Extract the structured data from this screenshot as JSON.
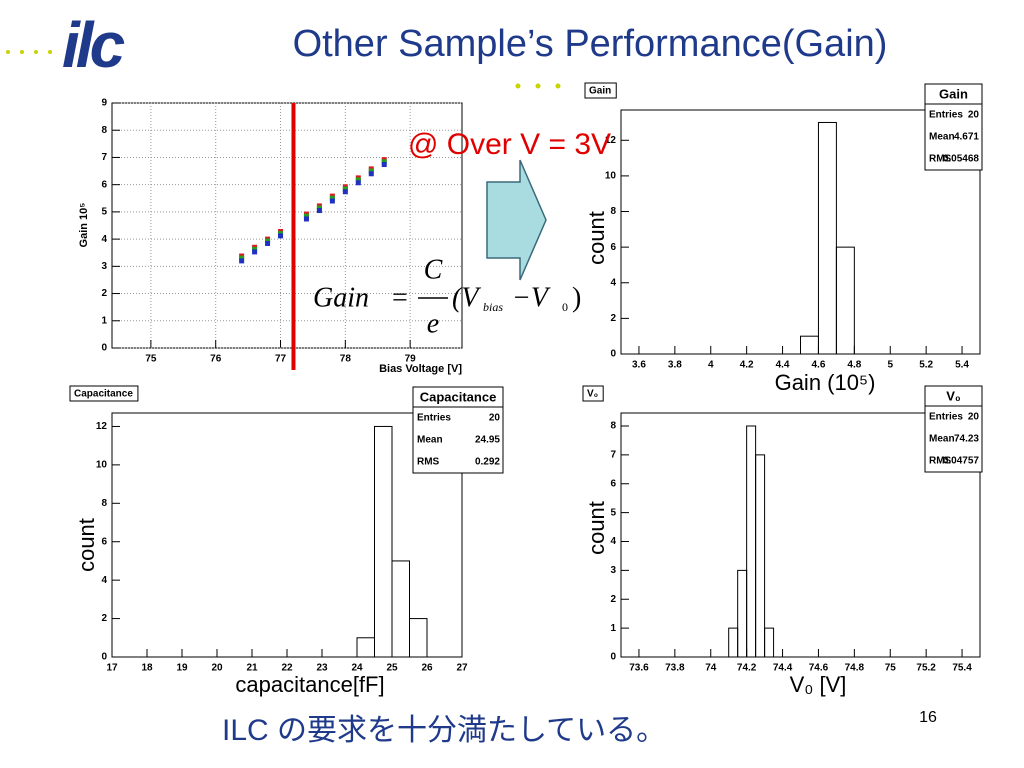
{
  "title": "Other Sample’s Performance(Gain)",
  "annotation": "@ Over V = 3V",
  "formula": {
    "lhs": "Gain",
    "eq": "=",
    "numerator": "C",
    "denominator": "e",
    "open": "(V",
    "sub1": "bias",
    "minus": "−V",
    "sub2": "0",
    "close": ")"
  },
  "logo": "ilc",
  "footer": "ILC の要求を十分満たしている。",
  "page_number": "16",
  "chart_data": [
    {
      "type": "scatter",
      "x_label": "Bias Voltage [V]",
      "y_label": "Gain 10⁵",
      "x": [
        76.4,
        76.6,
        76.8,
        77.0,
        77.4,
        77.6,
        77.8,
        78.0,
        78.2,
        78.4,
        78.6
      ],
      "series": [
        {
          "color": "#d62020",
          "values": [
            3.38,
            3.7,
            4.0,
            4.28,
            4.92,
            5.22,
            5.58,
            5.92,
            6.25,
            6.58,
            6.92
          ]
        },
        {
          "color": "#22a022",
          "values": [
            3.3,
            3.62,
            3.93,
            4.2,
            4.84,
            5.14,
            5.5,
            5.84,
            6.17,
            6.5,
            6.84
          ]
        },
        {
          "color": "#2030c0",
          "values": [
            3.2,
            3.53,
            3.84,
            4.12,
            4.74,
            5.05,
            5.4,
            5.74,
            6.07,
            6.4,
            6.74
          ]
        }
      ],
      "marker_line": {
        "value": 77.2,
        "color": "#e00000"
      },
      "xlim": [
        74.4,
        79.8
      ],
      "xticks": [
        75,
        76,
        77,
        78,
        79
      ],
      "ylim": [
        0,
        9
      ],
      "yticks": [
        0,
        1,
        2,
        3,
        4,
        5,
        6,
        7,
        8,
        9
      ],
      "grid": true
    },
    {
      "type": "histogram",
      "title": "Gain",
      "x_label": "Gain (10⁵)",
      "y_label": "count",
      "bins": [
        4.5,
        4.6,
        4.7,
        4.8
      ],
      "counts": [
        1,
        13,
        6
      ],
      "stats": {
        "title": "Gain",
        "rows": [
          {
            "label": "Entries",
            "value": 20
          },
          {
            "label": "Mean",
            "value": 4.671
          },
          {
            "label": "RMS",
            "value": 0.05468
          }
        ]
      },
      "xlim": [
        3.5,
        5.5
      ],
      "xticks": [
        3.6,
        3.8,
        4,
        4.2,
        4.4,
        4.6,
        4.8,
        5,
        5.2,
        5.4
      ],
      "ylim": [
        0,
        13.7
      ],
      "yticks": [
        0,
        2,
        4,
        6,
        8,
        10,
        12
      ]
    },
    {
      "type": "histogram",
      "title": "Capacitance",
      "x_label": "capacitance[fF]",
      "y_label": "count",
      "bins": [
        24,
        24.5,
        25,
        25.5,
        26
      ],
      "counts": [
        1,
        12,
        5,
        2
      ],
      "stats": {
        "title": "Capacitance",
        "rows": [
          {
            "label": "Entries",
            "value": 20
          },
          {
            "label": "Mean",
            "value": 24.95
          },
          {
            "label": "RMS",
            "value": 0.292
          }
        ]
      },
      "xlim": [
        17,
        27
      ],
      "xticks": [
        17,
        18,
        19,
        20,
        21,
        22,
        23,
        24,
        25,
        26,
        27
      ],
      "ylim": [
        0,
        12.7
      ],
      "yticks": [
        0,
        2,
        4,
        6,
        8,
        10,
        12
      ]
    },
    {
      "type": "histogram",
      "title": "V₀",
      "x_label": "V₀ [V]",
      "y_label": "count",
      "bins": [
        74.1,
        74.15,
        74.2,
        74.25,
        74.3,
        74.35
      ],
      "counts": [
        1,
        3,
        8,
        7,
        1
      ],
      "stats": {
        "title": "V₀",
        "rows": [
          {
            "label": "Entries",
            "value": 20
          },
          {
            "label": "Mean",
            "value": 74.23
          },
          {
            "label": "RMS",
            "value": 0.04757
          }
        ]
      },
      "xlim": [
        73.5,
        75.5
      ],
      "xticks": [
        73.6,
        73.8,
        74,
        74.2,
        74.4,
        74.6,
        74.8,
        75,
        75.2,
        75.4
      ],
      "ylim": [
        0,
        8.45
      ],
      "yticks": [
        0,
        1,
        2,
        3,
        4,
        5,
        6,
        7,
        8
      ]
    }
  ]
}
